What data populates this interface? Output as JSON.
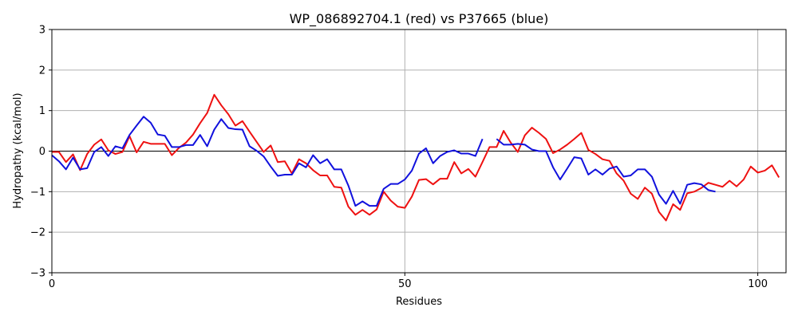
{
  "chart_data": {
    "type": "line",
    "title": "WP_086892704.1 (red) vs P37665 (blue)",
    "xlabel": "Residues",
    "ylabel": "Hydropathy (kcal/mol)",
    "xlim": [
      0,
      104
    ],
    "ylim": [
      -3,
      3
    ],
    "xticks": [
      0,
      50,
      100
    ],
    "yticks": [
      -3,
      -2,
      -1,
      0,
      1,
      2,
      3
    ],
    "grid": true,
    "zero_line": true,
    "series": [
      {
        "color": "#ee1111",
        "points": [
          [
            0,
            -0.02
          ],
          [
            1,
            -0.02
          ],
          [
            2,
            -0.27
          ],
          [
            3,
            -0.08
          ],
          [
            4,
            -0.47
          ],
          [
            5,
            -0.07
          ],
          [
            6,
            0.16
          ],
          [
            7,
            0.29
          ],
          [
            8,
            0.02
          ],
          [
            9,
            -0.07
          ],
          [
            10,
            -0.02
          ],
          [
            11,
            0.37
          ],
          [
            12,
            -0.03
          ],
          [
            13,
            0.23
          ],
          [
            14,
            0.18
          ],
          [
            15,
            0.18
          ],
          [
            16,
            0.18
          ],
          [
            17,
            -0.1
          ],
          [
            18,
            0.08
          ],
          [
            19,
            0.21
          ],
          [
            20,
            0.41
          ],
          [
            21,
            0.69
          ],
          [
            22,
            0.94
          ],
          [
            23,
            1.39
          ],
          [
            24,
            1.13
          ],
          [
            25,
            0.91
          ],
          [
            26,
            0.63
          ],
          [
            27,
            0.74
          ],
          [
            28,
            0.48
          ],
          [
            29,
            0.23
          ],
          [
            30,
            -0.02
          ],
          [
            31,
            0.14
          ],
          [
            32,
            -0.27
          ],
          [
            33,
            -0.25
          ],
          [
            34,
            -0.55
          ],
          [
            35,
            -0.2
          ],
          [
            36,
            -0.3
          ],
          [
            37,
            -0.47
          ],
          [
            38,
            -0.6
          ],
          [
            39,
            -0.6
          ],
          [
            40,
            -0.88
          ],
          [
            41,
            -0.9
          ],
          [
            42,
            -1.37
          ],
          [
            43,
            -1.57
          ],
          [
            44,
            -1.45
          ],
          [
            45,
            -1.57
          ],
          [
            46,
            -1.44
          ],
          [
            47,
            -1.0
          ],
          [
            48,
            -1.22
          ],
          [
            49,
            -1.37
          ],
          [
            50,
            -1.4
          ],
          [
            51,
            -1.12
          ],
          [
            52,
            -0.71
          ],
          [
            53,
            -0.69
          ],
          [
            54,
            -0.82
          ],
          [
            55,
            -0.68
          ],
          [
            56,
            -0.68
          ],
          [
            57,
            -0.27
          ],
          [
            58,
            -0.55
          ],
          [
            59,
            -0.44
          ],
          [
            60,
            -0.63
          ],
          [
            61,
            -0.27
          ],
          [
            62,
            0.1
          ],
          [
            63,
            0.1
          ],
          [
            64,
            0.5
          ],
          [
            65,
            0.21
          ],
          [
            66,
            -0.02
          ],
          [
            67,
            0.39
          ],
          [
            68,
            0.58
          ],
          [
            69,
            0.45
          ],
          [
            70,
            0.3
          ],
          [
            71,
            -0.05
          ],
          [
            72,
            0.04
          ],
          [
            73,
            0.16
          ],
          [
            74,
            0.3
          ],
          [
            75,
            0.45
          ],
          [
            76,
            0.03
          ],
          [
            77,
            -0.07
          ],
          [
            78,
            -0.2
          ],
          [
            79,
            -0.24
          ],
          [
            80,
            -0.55
          ],
          [
            81,
            -0.73
          ],
          [
            82,
            -1.05
          ],
          [
            83,
            -1.18
          ],
          [
            84,
            -0.9
          ],
          [
            85,
            -1.05
          ],
          [
            86,
            -1.5
          ],
          [
            87,
            -1.71
          ],
          [
            88,
            -1.31
          ],
          [
            89,
            -1.45
          ],
          [
            90,
            -1.04
          ],
          [
            91,
            -1.0
          ],
          [
            92,
            -0.91
          ],
          [
            93,
            -0.78
          ],
          [
            94,
            -0.83
          ],
          [
            95,
            -0.88
          ],
          [
            96,
            -0.73
          ],
          [
            97,
            -0.87
          ],
          [
            98,
            -0.7
          ],
          [
            99,
            -0.38
          ],
          [
            100,
            -0.53
          ],
          [
            101,
            -0.48
          ],
          [
            102,
            -0.35
          ],
          [
            103,
            -0.65
          ]
        ]
      },
      {
        "color": "#1111dd",
        "points": [
          [
            0,
            -0.1
          ],
          [
            1,
            -0.25
          ],
          [
            2,
            -0.45
          ],
          [
            3,
            -0.16
          ],
          [
            4,
            -0.45
          ],
          [
            5,
            -0.42
          ],
          [
            6,
            -0.02
          ],
          [
            7,
            0.1
          ],
          [
            8,
            -0.12
          ],
          [
            9,
            0.12
          ],
          [
            10,
            0.07
          ],
          [
            11,
            0.4
          ],
          [
            12,
            0.63
          ],
          [
            13,
            0.85
          ],
          [
            14,
            0.7
          ],
          [
            15,
            0.41
          ],
          [
            16,
            0.38
          ],
          [
            17,
            0.1
          ],
          [
            18,
            0.1
          ],
          [
            19,
            0.15
          ],
          [
            20,
            0.15
          ],
          [
            21,
            0.4
          ],
          [
            22,
            0.12
          ],
          [
            23,
            0.53
          ],
          [
            24,
            0.79
          ],
          [
            25,
            0.57
          ],
          [
            26,
            0.54
          ],
          [
            27,
            0.53
          ],
          [
            28,
            0.12
          ],
          [
            29,
            0.01
          ],
          [
            30,
            -0.13
          ],
          [
            31,
            -0.38
          ],
          [
            32,
            -0.61
          ],
          [
            33,
            -0.58
          ],
          [
            34,
            -0.58
          ],
          [
            35,
            -0.3
          ],
          [
            36,
            -0.4
          ],
          [
            37,
            -0.1
          ],
          [
            38,
            -0.3
          ],
          [
            39,
            -0.2
          ],
          [
            40,
            -0.45
          ],
          [
            41,
            -0.45
          ],
          [
            42,
            -0.85
          ],
          [
            43,
            -1.35
          ],
          [
            44,
            -1.24
          ],
          [
            45,
            -1.35
          ],
          [
            46,
            -1.35
          ],
          [
            47,
            -0.93
          ],
          [
            48,
            -0.81
          ],
          [
            49,
            -0.81
          ],
          [
            50,
            -0.7
          ],
          [
            51,
            -0.48
          ],
          [
            52,
            -0.06
          ],
          [
            53,
            0.07
          ],
          [
            54,
            -0.3
          ],
          [
            55,
            -0.12
          ],
          [
            56,
            -0.02
          ],
          [
            57,
            0.02
          ],
          [
            58,
            -0.06
          ],
          [
            59,
            -0.06
          ],
          [
            60,
            -0.12
          ],
          [
            61,
            0.3
          ],
          [
            62,
            null
          ],
          [
            63,
            0.3
          ],
          [
            64,
            0.16
          ],
          [
            65,
            0.16
          ],
          [
            66,
            0.18
          ],
          [
            67,
            0.16
          ],
          [
            68,
            0.04
          ],
          [
            69,
            0.0
          ],
          [
            70,
            0.0
          ],
          [
            71,
            -0.4
          ],
          [
            72,
            -0.7
          ],
          [
            73,
            -0.43
          ],
          [
            74,
            -0.15
          ],
          [
            75,
            -0.18
          ],
          [
            76,
            -0.58
          ],
          [
            77,
            -0.45
          ],
          [
            78,
            -0.58
          ],
          [
            79,
            -0.43
          ],
          [
            80,
            -0.38
          ],
          [
            81,
            -0.63
          ],
          [
            82,
            -0.6
          ],
          [
            83,
            -0.45
          ],
          [
            84,
            -0.45
          ],
          [
            85,
            -0.63
          ],
          [
            86,
            -1.07
          ],
          [
            87,
            -1.3
          ],
          [
            88,
            -0.98
          ],
          [
            89,
            -1.3
          ],
          [
            90,
            -0.83
          ],
          [
            91,
            -0.79
          ],
          [
            92,
            -0.82
          ],
          [
            93,
            -0.96
          ],
          [
            94,
            -1.0
          ]
        ]
      }
    ]
  }
}
